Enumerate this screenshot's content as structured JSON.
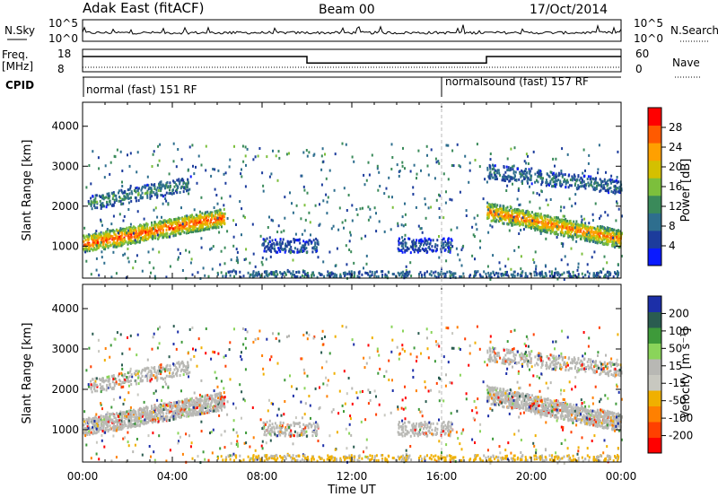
{
  "header": {
    "site": "Adak East (fitACF)",
    "beam": "Beam 00",
    "date": "17/Oct/2014"
  },
  "aux_panels": {
    "nsky": {
      "label": "N.Sky",
      "ticks": [
        "10^5",
        "10^0"
      ]
    },
    "nsearch": {
      "label": "N.Search",
      "ticks": [
        "10^5",
        "10^0"
      ]
    },
    "freq": {
      "label_line1": "Freq.",
      "label_line2": "[MHz]",
      "ticks": [
        "18",
        "8"
      ]
    },
    "nave": {
      "label": "Nave",
      "ticks": [
        "60",
        "0"
      ]
    },
    "cpid": {
      "label": "CPID",
      "entries": [
        {
          "text": "normal (fast) 151 RF",
          "start_hour": 0
        },
        {
          "text": "normalsound (fast) 157 RF",
          "start_hour": 16
        }
      ]
    },
    "freq_trace": [
      {
        "start_hour": 0,
        "end_hour": 10,
        "mhz": 15.5
      },
      {
        "start_hour": 10,
        "end_hour": 18,
        "mhz": 11.5
      },
      {
        "start_hour": 18,
        "end_hour": 24,
        "mhz": 15.5
      }
    ]
  },
  "colors": {
    "power_scale": [
      "#0a1aff",
      "#1c3c9c",
      "#2e6e8e",
      "#3a8a5a",
      "#7cbf3c",
      "#d4c000",
      "#ffa000",
      "#ff5a00",
      "#ff0000"
    ],
    "velocity_scale": [
      "#1c2fa8",
      "#2a5c50",
      "#3e9a3a",
      "#8ad45a",
      "#b8b8b4",
      "#c8c8c0",
      "#f0b000",
      "#ff8000",
      "#ff4000",
      "#ff0000"
    ]
  },
  "chart_data": [
    {
      "type": "heatmap",
      "panel": "power",
      "xlabel": "",
      "ylabel": "Slant Range [km]",
      "x_ticks": [
        "00:00",
        "04:00",
        "08:00",
        "12:00",
        "16:00",
        "20:00",
        "00:00"
      ],
      "y_ticks": [
        "1000",
        "2000",
        "3000",
        "4000"
      ],
      "xlim_hours": [
        0,
        24
      ],
      "ylim_km": [
        200,
        4600
      ],
      "colorbar": {
        "label": "Power [dB]",
        "ticks": [
          "4",
          "8",
          "12",
          "16",
          "20",
          "24",
          "28"
        ],
        "range": [
          0,
          30
        ]
      },
      "regions": [
        {
          "name": "early-main",
          "hours": [
            0,
            6.3
          ],
          "km_center_start": 1080,
          "km_center_end": 1750,
          "strength": 26
        },
        {
          "name": "early-upper",
          "hours": [
            0.3,
            4.8
          ],
          "km_center_start": 2100,
          "km_center_end": 2600,
          "strength": 12
        },
        {
          "name": "mid-patch-a",
          "hours": [
            8,
            10.5
          ],
          "km_center_start": 1050,
          "km_center_end": 1050,
          "strength": 7
        },
        {
          "name": "mid-patch-b",
          "hours": [
            14,
            16.5
          ],
          "km_center_start": 1050,
          "km_center_end": 1050,
          "strength": 7
        },
        {
          "name": "late-main",
          "hours": [
            18,
            24
          ],
          "km_center_start": 1900,
          "km_center_end": 1200,
          "strength": 24
        },
        {
          "name": "late-upper",
          "hours": [
            18,
            24
          ],
          "km_center_start": 2900,
          "km_center_end": 2500,
          "strength": 10
        }
      ]
    },
    {
      "type": "heatmap",
      "panel": "velocity",
      "xlabel": "Time UT",
      "ylabel": "Slant Range [km]",
      "x_ticks": [
        "00:00",
        "04:00",
        "08:00",
        "12:00",
        "16:00",
        "20:00",
        "00:00"
      ],
      "y_ticks": [
        "1000",
        "2000",
        "3000",
        "4000"
      ],
      "xlim_hours": [
        0,
        24
      ],
      "ylim_km": [
        200,
        4600
      ],
      "colorbar": {
        "label": "Velocity [m s⁻¹]",
        "ticks": [
          "200",
          "100",
          "50",
          "15",
          "-15",
          "-50",
          "-100",
          "-200"
        ],
        "range": [
          -250,
          250
        ]
      },
      "dominant_value": "ground scatter (grey, |v| < 15 m/s)"
    }
  ]
}
